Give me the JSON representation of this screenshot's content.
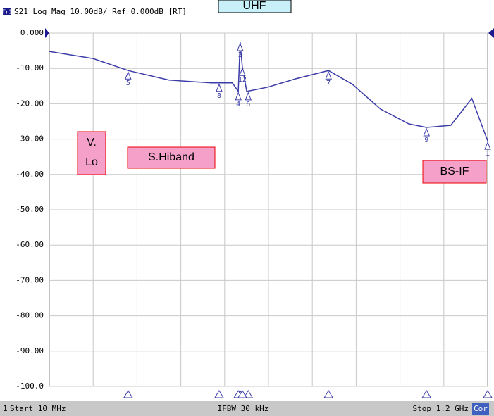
{
  "chart_data": {
    "type": "line",
    "header": "S21 Log Mag 10.00dB/ Ref 0.000dB [RT]",
    "trace_badge": "Tr1",
    "x": [
      10,
      128.6,
      224,
      335,
      450,
      507,
      523,
      528,
      534,
      546,
      603,
      680,
      768,
      833,
      909,
      986,
      1034,
      1100,
      1157,
      1200
    ],
    "series": [
      {
        "name": "S21",
        "color": "#3c3ca8",
        "values": [
          -5.2,
          -7.2,
          -10.6,
          -13.3,
          -14.1,
          -14.1,
          -16.5,
          -2.6,
          -9.6,
          -16.5,
          -15.3,
          -12.9,
          -10.6,
          -14.5,
          -21.5,
          -25.7,
          -26.7,
          -26.1,
          -18.5,
          -30.5
        ]
      }
    ],
    "xlim": [
      10,
      1200
    ],
    "ylim": [
      -100,
      0
    ],
    "yticks": [
      {
        "value": 0,
        "label": "0.000"
      },
      {
        "value": -10,
        "label": "-10.00"
      },
      {
        "value": -20,
        "label": "-20.00"
      },
      {
        "value": -30,
        "label": "-30.00"
      },
      {
        "value": -40,
        "label": "-40.00"
      },
      {
        "value": -50,
        "label": "-50.00"
      },
      {
        "value": -60,
        "label": "-60.00"
      },
      {
        "value": -70,
        "label": "-70.00"
      },
      {
        "value": -80,
        "label": "-80.00"
      },
      {
        "value": -90,
        "label": "-90.00"
      },
      {
        "value": -100,
        "label": "-100.0"
      }
    ],
    "grid": true,
    "markers": [
      {
        "label": "1",
        "x": 1200,
        "y": -30.5
      },
      {
        "label": "3",
        "x": 528,
        "y": -2.6
      },
      {
        "label": "4",
        "x": 523,
        "y": -16.5
      },
      {
        "label": "5",
        "x": 224,
        "y": -10.6
      },
      {
        "label": "6",
        "x": 550,
        "y": -16.5
      },
      {
        "label": "7",
        "x": 768,
        "y": -10.6
      },
      {
        "label": "8",
        "x": 471,
        "y": -14.1
      },
      {
        "label": "9",
        "x": 1034,
        "y": -26.7
      },
      {
        "label": "12",
        "x": 534,
        "y": -9.6
      }
    ],
    "annotations": [
      "UHF",
      "V.",
      "Lo",
      "S.Hiband",
      "BS-IF"
    ],
    "footer": {
      "channel": "1",
      "start": "Start 10 MHz",
      "ifbw": "IFBW 30 kHz",
      "stop": "Stop 1.2 GHz",
      "cor": "Cor"
    }
  }
}
